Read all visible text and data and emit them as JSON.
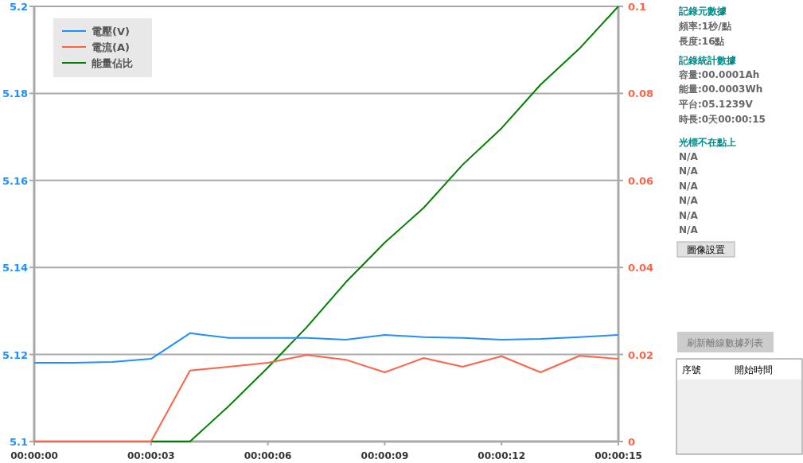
{
  "chart_data": {
    "type": "line",
    "x": [
      0,
      1,
      2,
      3,
      4,
      5,
      6,
      7,
      8,
      9,
      10,
      11,
      12,
      13,
      14,
      15
    ],
    "series": [
      {
        "name": "電壓(V)",
        "color": "#1e90ff",
        "values": [
          5.1181,
          5.1181,
          5.1183,
          5.119,
          5.1249,
          5.1238,
          5.1238,
          5.1238,
          5.1234,
          5.1245,
          5.124,
          5.1238,
          5.1234,
          5.1236,
          5.124,
          5.1245
        ]
      },
      {
        "name": "電流(A)",
        "color": "#ff6347",
        "axis": "y2",
        "values": [
          0,
          0,
          0,
          0,
          0.0163,
          0.0172,
          0.0181,
          0.0199,
          0.0188,
          0.0159,
          0.0192,
          0.0172,
          0.0196,
          0.0159,
          0.0197,
          0.019
        ]
      },
      {
        "name": "能量佔比",
        "color": "#008000",
        "axis": "y2",
        "values": [
          null,
          null,
          null,
          0,
          0,
          0.0082,
          0.017,
          0.0263,
          0.0366,
          0.0457,
          0.0537,
          0.0636,
          0.072,
          0.082,
          0.0903,
          0.1
        ]
      }
    ],
    "xlim": [
      0,
      15
    ],
    "xticks": [
      {
        "value": 0,
        "label": "00:00:00"
      },
      {
        "value": 3,
        "label": "00:00:03"
      },
      {
        "value": 6,
        "label": "00:00:06"
      },
      {
        "value": 9,
        "label": "00:00:09"
      },
      {
        "value": 12,
        "label": "00:00:12"
      },
      {
        "value": 15,
        "label": "00:00:15"
      }
    ],
    "ylim": [
      5.1,
      5.2
    ],
    "yticks": [
      5.1,
      5.12,
      5.14,
      5.16,
      5.18,
      5.2
    ],
    "y2lim": [
      0,
      0.1
    ],
    "y2ticks": [
      0,
      0.02,
      0.04,
      0.06,
      0.08,
      0.1
    ],
    "grid": "y",
    "legend": "top left",
    "annotations": [
      "記錄元數據",
      "頻率:1秒/點",
      "長度:16點",
      "記錄統計數據",
      "容量:00.0001Ah",
      "能量:00.0003Wh",
      "平台:05.1239V",
      "時長:0天00:00:15",
      "光標不在點上",
      "N/A",
      "N/A",
      "N/A",
      "N/A",
      "N/A",
      "N/A",
      "圖像設置",
      "刷新離線數據列表",
      "序號",
      "開始時間"
    ]
  }
}
